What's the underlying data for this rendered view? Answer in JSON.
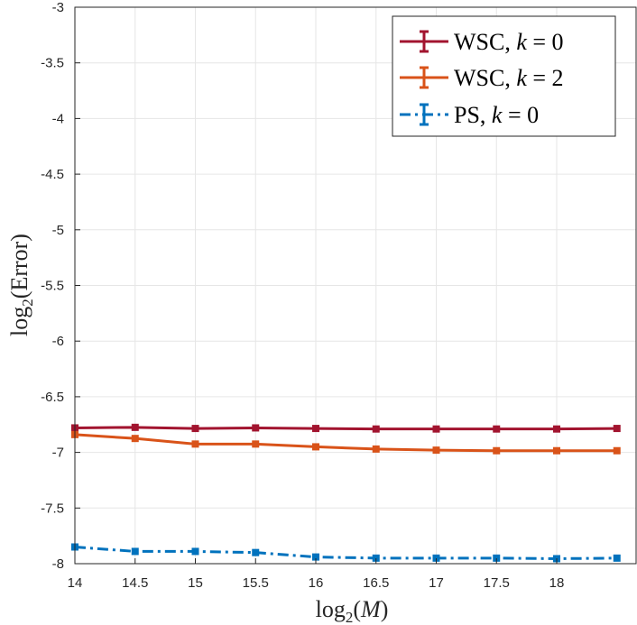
{
  "chart_data": {
    "type": "line",
    "title": "",
    "xlabel": "log₂(M)",
    "ylabel": "log₂(Error)",
    "xlim": [
      14,
      18.5
    ],
    "ylim": [
      -8,
      -3
    ],
    "xticks": [
      14,
      14.5,
      15,
      15.5,
      16,
      16.5,
      17,
      17.5,
      18
    ],
    "xtick_labels": [
      "14",
      "14.5",
      "15",
      "15.5",
      "16",
      "16.5",
      "17",
      "17.5",
      "18"
    ],
    "yticks": [
      -3,
      -3.5,
      -4,
      -4.5,
      -5,
      -5.5,
      -6,
      -6.5,
      -7,
      -7.5,
      -8
    ],
    "ytick_labels": [
      "-3",
      "-3.5",
      "-4",
      "-4.5",
      "-5",
      "-5.5",
      "-6",
      "-6.5",
      "-7",
      "-7.5",
      "-8"
    ],
    "grid": true,
    "legend_position": "top-right",
    "x": [
      14,
      14.5,
      15,
      15.5,
      16,
      16.5,
      17,
      17.5,
      18,
      18.5
    ],
    "series": [
      {
        "name": "WSC, k = 0",
        "legend_parts": [
          "WSC, ",
          "k",
          " = 0"
        ],
        "color": "#A2142F",
        "dash": "solid",
        "values": [
          -6.78,
          -6.775,
          -6.785,
          -6.78,
          -6.785,
          -6.79,
          -6.79,
          -6.79,
          -6.79,
          -6.785
        ]
      },
      {
        "name": "WSC, k = 2",
        "legend_parts": [
          "WSC, ",
          "k",
          " = 2"
        ],
        "color": "#D95319",
        "dash": "solid",
        "values": [
          -6.84,
          -6.875,
          -6.925,
          -6.925,
          -6.95,
          -6.97,
          -6.98,
          -6.985,
          -6.985,
          -6.985
        ]
      },
      {
        "name": "PS, k = 0",
        "legend_parts": [
          "PS, ",
          "k",
          " = 0"
        ],
        "color": "#0072BD",
        "dash": "dashdot",
        "values": [
          -7.85,
          -7.89,
          -7.89,
          -7.9,
          -7.94,
          -7.95,
          -7.95,
          -7.95,
          -7.955,
          -7.95
        ]
      }
    ]
  }
}
